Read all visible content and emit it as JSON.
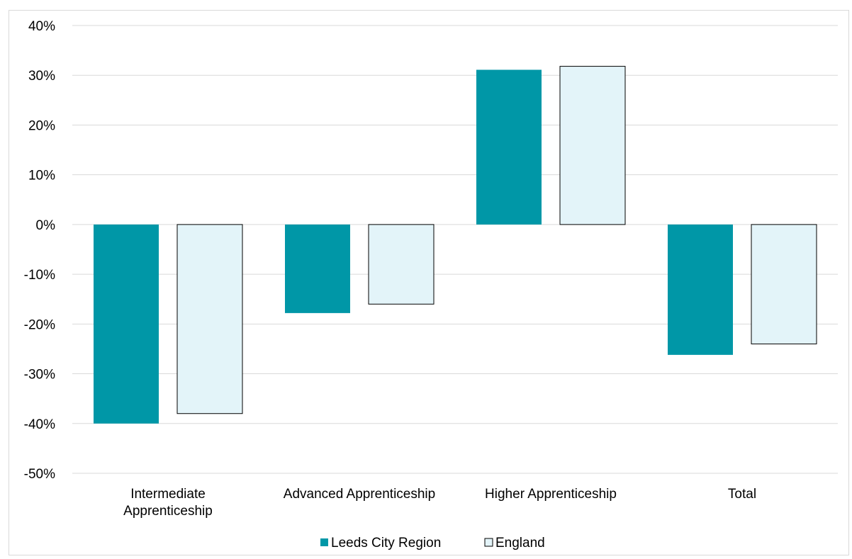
{
  "chart_data": {
    "type": "bar",
    "title": "",
    "xlabel": "",
    "ylabel": "",
    "categories": [
      [
        "Intermediate",
        "Apprenticeship"
      ],
      [
        "Advanced Apprenticeship"
      ],
      [
        "Higher Apprenticeship"
      ],
      [
        "Total"
      ]
    ],
    "series": [
      {
        "name": "Leeds City Region",
        "values": [
          -40,
          -17.8,
          31.1,
          -26.2
        ],
        "color": "#0097a7",
        "stroke": "none"
      },
      {
        "name": "England",
        "values": [
          -38,
          -16,
          31.8,
          -24
        ],
        "color": "#e3f4f9",
        "stroke": "#000000"
      }
    ],
    "ylim": [
      -50,
      40
    ],
    "yticks": [
      40,
      30,
      20,
      10,
      0,
      -10,
      -20,
      -30,
      -40,
      -50
    ],
    "ytick_labels": [
      "40%",
      "30%",
      "20%",
      "10%",
      "0%",
      "-10%",
      "-20%",
      "-30%",
      "-40%",
      "-50%"
    ],
    "grid": true,
    "legend_position": "bottom-center"
  }
}
